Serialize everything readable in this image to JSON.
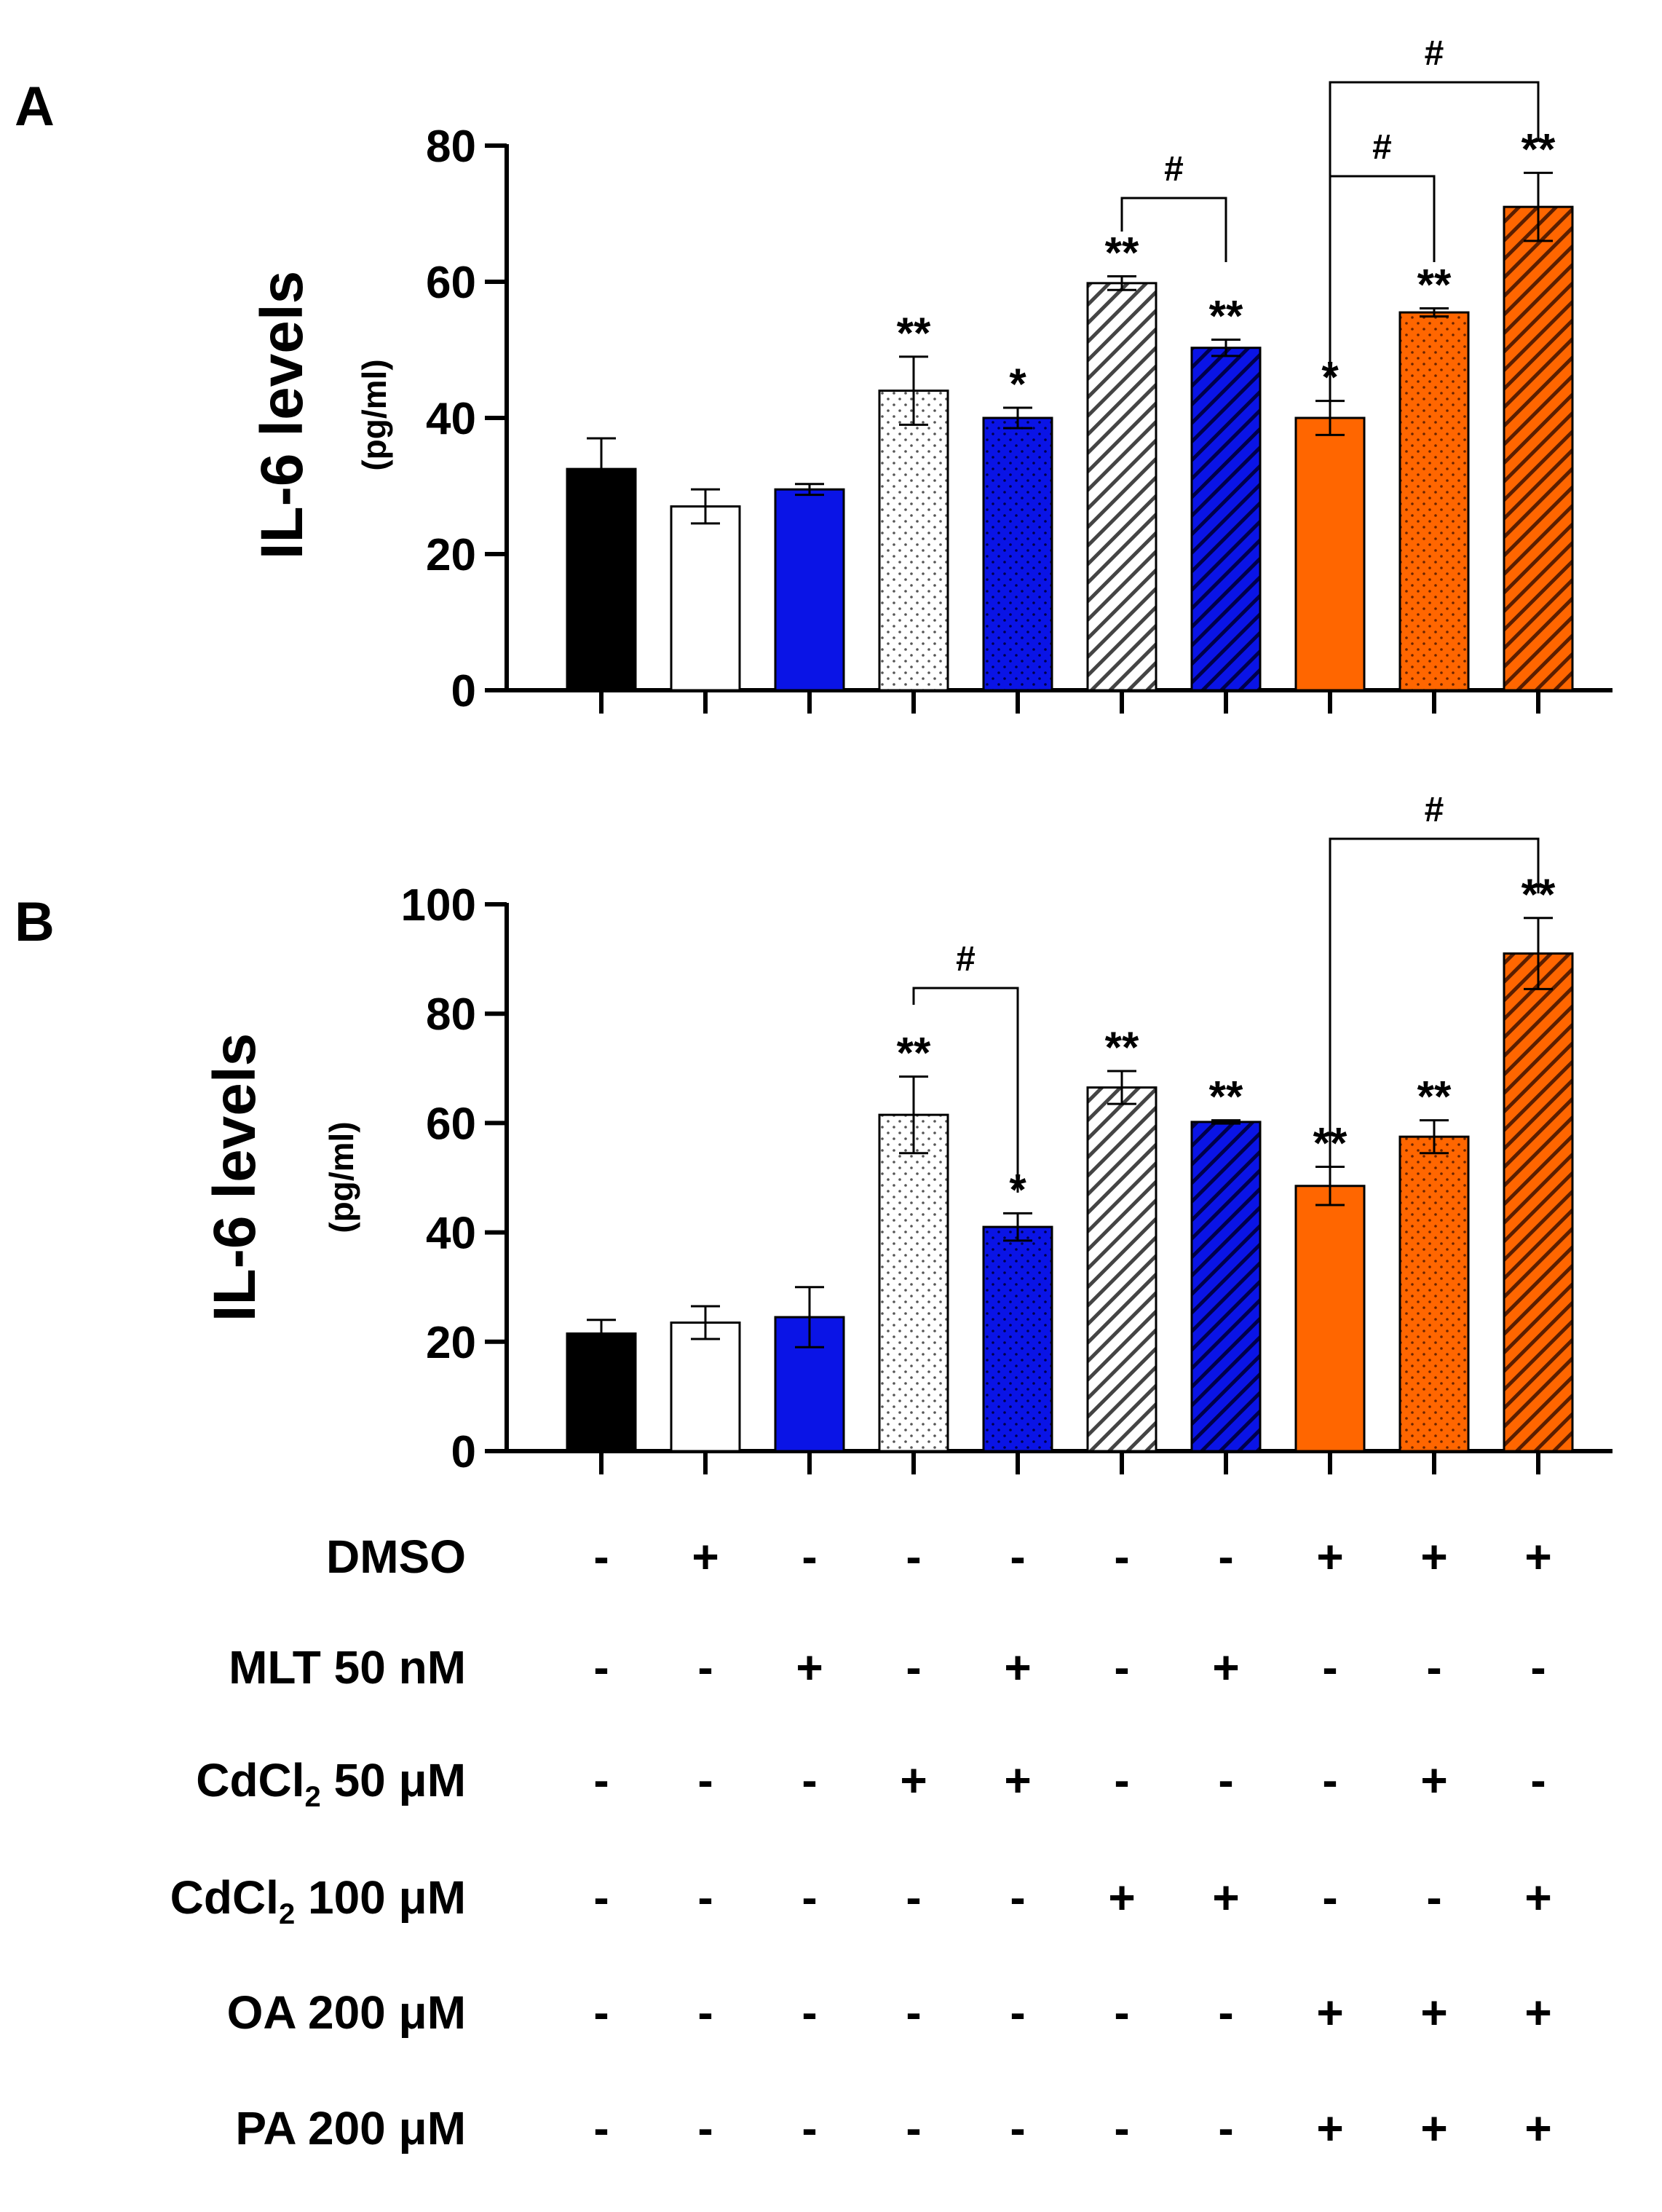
{
  "chart_data": [
    {
      "panel_label": "A",
      "type": "bar",
      "ylabel": "IL-6 levels",
      "ylabel_unit": "(pg/ml)",
      "ylim": [
        0,
        80
      ],
      "yticks": [
        "0",
        "20",
        "40",
        "60",
        "80"
      ],
      "values": [
        32.5,
        27.0,
        29.5,
        44.0,
        40.0,
        59.8,
        50.3,
        40.0,
        55.5,
        71.0
      ],
      "errors": [
        4.5,
        2.5,
        0.8,
        5.0,
        1.5,
        1.0,
        1.2,
        2.5,
        0.6,
        5.0
      ],
      "significance": [
        "",
        "",
        "",
        "**",
        "*",
        "**",
        "**",
        "*",
        "**",
        "**"
      ],
      "brackets": [
        {
          "from": 5,
          "to": 6,
          "label": "#"
        },
        {
          "from": 7,
          "to": 8,
          "label": "#"
        },
        {
          "from": 7,
          "to": 9,
          "label": "#"
        }
      ]
    },
    {
      "panel_label": "B",
      "type": "bar",
      "ylabel": "IL-6 levels",
      "ylabel_unit": "(pg/ml)",
      "ylim": [
        0,
        100
      ],
      "yticks": [
        "0",
        "20",
        "40",
        "60",
        "80",
        "100"
      ],
      "values": [
        21.5,
        23.5,
        24.5,
        61.5,
        41.0,
        66.5,
        60.2,
        48.5,
        57.5,
        91.0
      ],
      "errors": [
        2.5,
        3.0,
        5.5,
        7.0,
        2.5,
        3.0,
        0.3,
        3.5,
        3.0,
        6.5
      ],
      "significance": [
        "",
        "",
        "",
        "**",
        "*",
        "**",
        "**",
        "**",
        "**",
        "**"
      ],
      "brackets": [
        {
          "from": 3,
          "to": 4,
          "label": "#"
        },
        {
          "from": 7,
          "to": 9,
          "label": "#"
        }
      ]
    }
  ],
  "bar_styles": [
    {
      "fill": "#000000",
      "pattern": "none"
    },
    {
      "fill": "#ffffff",
      "pattern": "none"
    },
    {
      "fill": "#0a14e6",
      "pattern": "none"
    },
    {
      "fill": "#ffffff",
      "pattern": "dots"
    },
    {
      "fill": "#0a14e6",
      "pattern": "dots"
    },
    {
      "fill": "#ffffff",
      "pattern": "hatch"
    },
    {
      "fill": "#0a14e6",
      "pattern": "hatch"
    },
    {
      "fill": "#ff6600",
      "pattern": "none"
    },
    {
      "fill": "#ff6600",
      "pattern": "dots"
    },
    {
      "fill": "#ff6600",
      "pattern": "hatch"
    }
  ],
  "treatment_table": [
    {
      "label": "DMSO",
      "sub": "",
      "rest": "",
      "values": [
        "-",
        "+",
        "-",
        "-",
        "-",
        "-",
        "-",
        "+",
        "+",
        "+"
      ]
    },
    {
      "label": "MLT 50 nM",
      "sub": "",
      "rest": "",
      "values": [
        "-",
        "-",
        "+",
        "-",
        "+",
        "-",
        "+",
        "-",
        "-",
        "-"
      ]
    },
    {
      "label": "CdCl",
      "sub": "2",
      "rest": " 50 μM",
      "values": [
        "-",
        "-",
        "-",
        "+",
        "+",
        "-",
        "-",
        "-",
        "+",
        "-"
      ]
    },
    {
      "label": "CdCl",
      "sub": "2",
      "rest": " 100 μM",
      "values": [
        "-",
        "-",
        "-",
        "-",
        "-",
        "+",
        "+",
        "-",
        "-",
        "+"
      ]
    },
    {
      "label": "OA 200 μM",
      "sub": "",
      "rest": "",
      "values": [
        "-",
        "-",
        "-",
        "-",
        "-",
        "-",
        "-",
        "+",
        "+",
        "+"
      ]
    },
    {
      "label": "PA 200 μM",
      "sub": "",
      "rest": "",
      "values": [
        "-",
        "-",
        "-",
        "-",
        "-",
        "-",
        "-",
        "+",
        "+",
        "+"
      ]
    }
  ]
}
